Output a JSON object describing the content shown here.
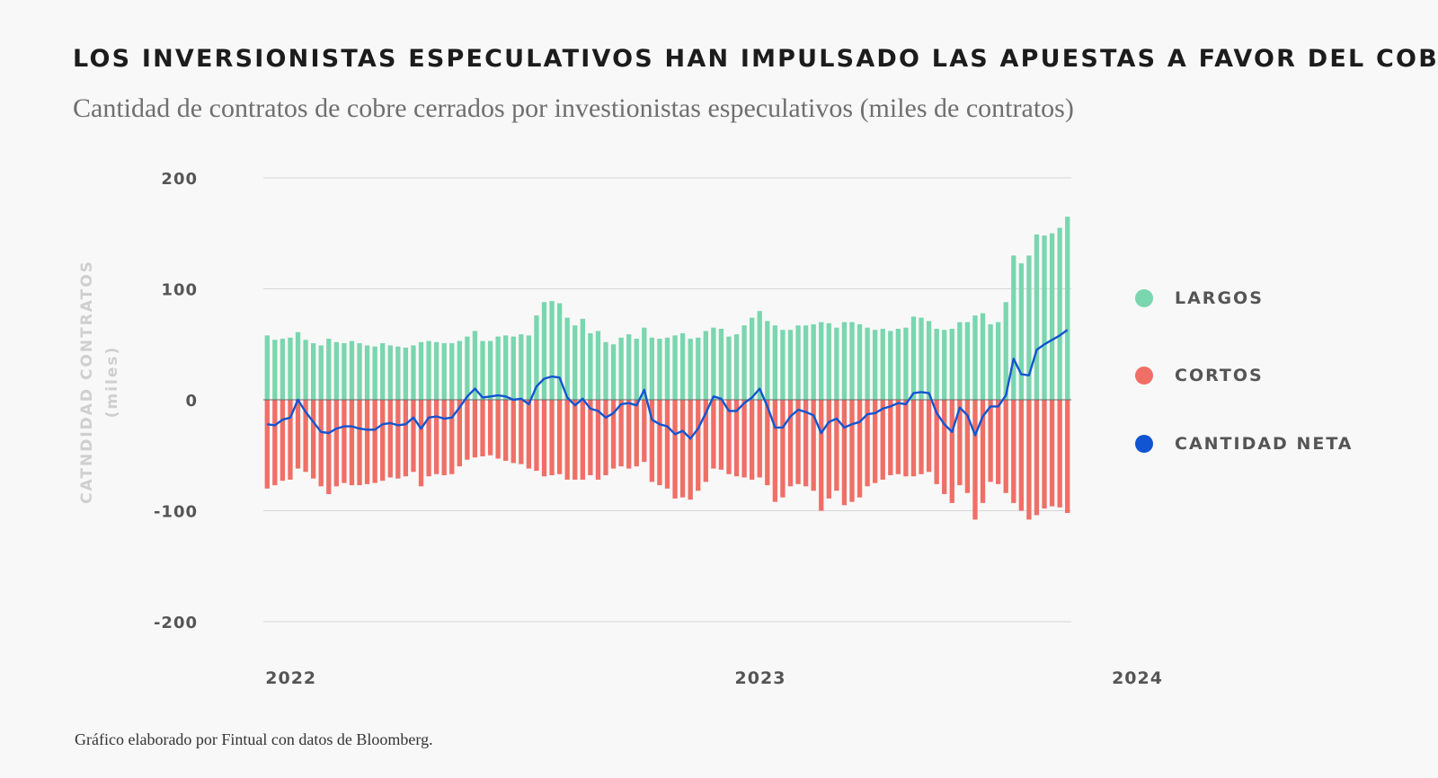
{
  "title": "LOS INVERSIONISTAS ESPECULATIVOS HAN IMPULSADO LAS APUESTAS A FAVOR DEL COBRE",
  "subtitle": "Cantidad de contratos de cobre cerrados por investionistas especulativos (miles de contratos)",
  "footer": "Gráfico elaborado por Fintual con datos de Bloomberg.",
  "chart_data": {
    "type": "bar",
    "ylabel_line1": "CATNDIDAD CONTRATOS",
    "ylabel_line2": "(miles)",
    "ylim": [
      -200,
      200
    ],
    "yticks": [
      200,
      100,
      0,
      -100,
      -200
    ],
    "ytick_labels": [
      "200",
      "100",
      "0",
      "-100",
      "-200"
    ],
    "xticks": [
      {
        "label": "2022",
        "index": 0
      },
      {
        "label": "2023",
        "index": 61
      },
      {
        "label": "2024",
        "index": 110
      }
    ],
    "grid": true,
    "legend_position": "right",
    "colors": {
      "largos": "#7ad6ae",
      "cortos": "#ef6f67",
      "neta": "#1255d0"
    },
    "series": [
      {
        "name": "LARGOS",
        "values": [
          58,
          54,
          55,
          56,
          61,
          54,
          51,
          49,
          55,
          52,
          51,
          53,
          51,
          49,
          48,
          51,
          49,
          48,
          47,
          49,
          52,
          53,
          52,
          51,
          51,
          53,
          57,
          62,
          53,
          53,
          57,
          58,
          57,
          59,
          58,
          76,
          88,
          89,
          87,
          74,
          67,
          73,
          60,
          62,
          52,
          50,
          56,
          59,
          55,
          65,
          56,
          55,
          56,
          58,
          60,
          55,
          56,
          62,
          65,
          64,
          57,
          59,
          67,
          74,
          80,
          71,
          67,
          63,
          63,
          67,
          67,
          68,
          70,
          69,
          65,
          70,
          70,
          68,
          65,
          63,
          64,
          62,
          64,
          65,
          75,
          74,
          71,
          64,
          63,
          64,
          70,
          70,
          76,
          78,
          68,
          70,
          88,
          130,
          123,
          130,
          149,
          148,
          150,
          155,
          165
        ]
      },
      {
        "name": "CORTOS",
        "values": [
          -80,
          -77,
          -73,
          -72,
          -62,
          -65,
          -71,
          -78,
          -85,
          -78,
          -75,
          -77,
          -77,
          -76,
          -75,
          -73,
          -70,
          -71,
          -69,
          -65,
          -78,
          -69,
          -67,
          -68,
          -67,
          -60,
          -54,
          -52,
          -51,
          -50,
          -53,
          -55,
          -57,
          -58,
          -62,
          -64,
          -69,
          -68,
          -67,
          -72,
          -72,
          -72,
          -68,
          -72,
          -68,
          -62,
          -60,
          -62,
          -60,
          -56,
          -74,
          -77,
          -80,
          -89,
          -88,
          -90,
          -82,
          -74,
          -62,
          -63,
          -67,
          -69,
          -70,
          -72,
          -70,
          -77,
          -92,
          -88,
          -78,
          -76,
          -78,
          -82,
          -100,
          -89,
          -82,
          -95,
          -92,
          -88,
          -78,
          -75,
          -72,
          -68,
          -67,
          -69,
          -69,
          -67,
          -65,
          -76,
          -85,
          -93,
          -77,
          -84,
          -108,
          -93,
          -74,
          -76,
          -84,
          -93,
          -100,
          -108,
          -104,
          -98,
          -96,
          -97,
          -102
        ]
      },
      {
        "name": "CANTIDAD NETA",
        "values": [
          -22,
          -23,
          -18,
          -16,
          0,
          -11,
          -20,
          -29,
          -30,
          -26,
          -24,
          -24,
          -26,
          -27,
          -27,
          -22,
          -21,
          -23,
          -22,
          -16,
          -26,
          -16,
          -15,
          -17,
          -16,
          -7,
          3,
          10,
          2,
          3,
          4,
          3,
          0,
          1,
          -4,
          12,
          19,
          21,
          20,
          2,
          -5,
          1,
          -8,
          -10,
          -16,
          -12,
          -4,
          -3,
          -5,
          9,
          -18,
          -22,
          -24,
          -31,
          -28,
          -35,
          -26,
          -12,
          3,
          1,
          -10,
          -10,
          -3,
          2,
          10,
          -6,
          -25,
          -25,
          -15,
          -9,
          -11,
          -14,
          -30,
          -20,
          -17,
          -25,
          -22,
          -20,
          -13,
          -12,
          -8,
          -6,
          -3,
          -4,
          6,
          7,
          6,
          -12,
          -22,
          -29,
          -7,
          -14,
          -32,
          -15,
          -6,
          -6,
          4,
          37,
          23,
          22,
          45,
          50,
          54,
          58,
          63
        ]
      }
    ]
  }
}
